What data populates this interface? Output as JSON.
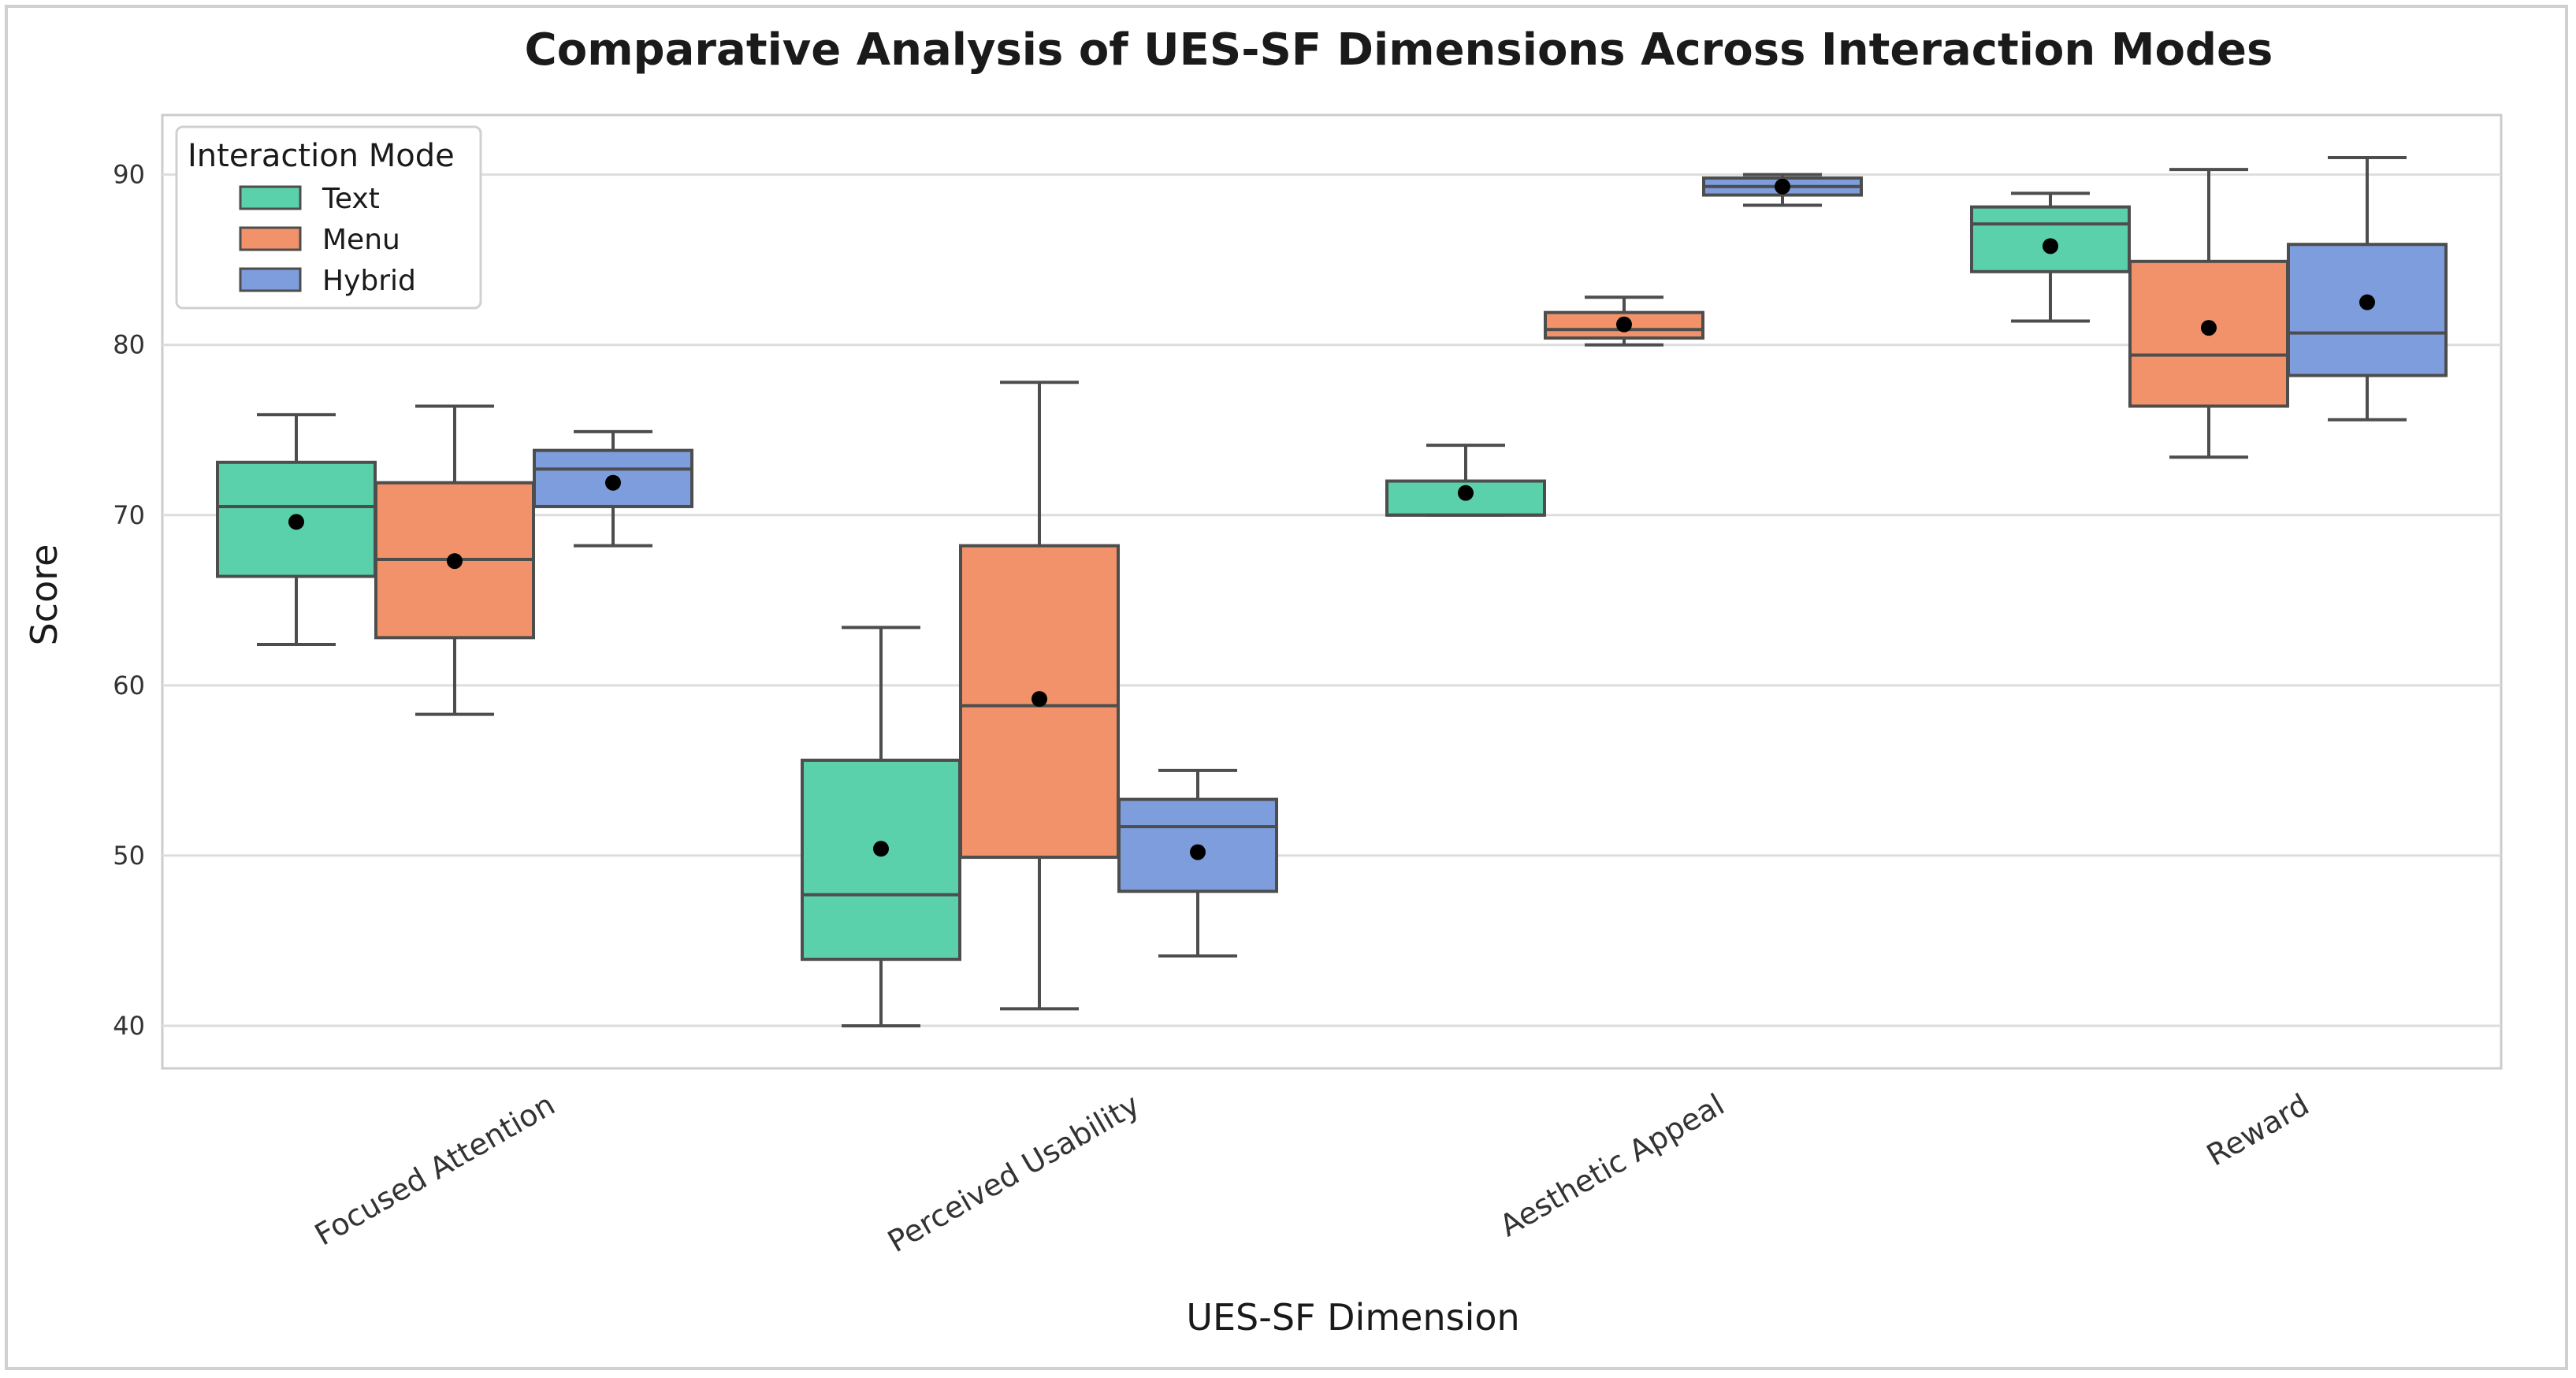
{
  "chart_data": {
    "type": "box",
    "title": "Comparative Analysis of UES-SF Dimensions Across Interaction Modes",
    "xlabel": "UES-SF Dimension",
    "ylabel": "Score",
    "ylim": [
      37.5,
      93.5
    ],
    "yticks": [
      40,
      50,
      60,
      70,
      80,
      90
    ],
    "grid": "horizontal",
    "categories": [
      "Focused Attention",
      "Perceived Usability",
      "Aesthetic Appeal",
      "Reward"
    ],
    "legend": {
      "title": "Interaction Mode",
      "placement": "top-left"
    },
    "series": [
      {
        "name": "Text",
        "color": "#5ad0ab",
        "boxes": [
          {
            "whisker_low": 62.4,
            "q1": 66.4,
            "median": 70.5,
            "q3": 73.1,
            "whisker_high": 75.9,
            "mean": 69.6
          },
          {
            "whisker_low": 40.0,
            "q1": 43.9,
            "median": 47.7,
            "q3": 55.6,
            "whisker_high": 63.4,
            "mean": 50.4
          },
          {
            "whisker_low": 70.0,
            "q1": 70.0,
            "median": 70.0,
            "q3": 72.0,
            "whisker_high": 74.1,
            "mean": 71.3
          },
          {
            "whisker_low": 81.4,
            "q1": 84.3,
            "median": 87.1,
            "q3": 88.1,
            "whisker_high": 88.9,
            "mean": 85.8
          }
        ]
      },
      {
        "name": "Menu",
        "color": "#f2926a",
        "boxes": [
          {
            "whisker_low": 58.3,
            "q1": 62.8,
            "median": 67.4,
            "q3": 71.9,
            "whisker_high": 76.4,
            "mean": 67.3
          },
          {
            "whisker_low": 41.0,
            "q1": 49.9,
            "median": 58.8,
            "q3": 68.2,
            "whisker_high": 77.8,
            "mean": 59.2
          },
          {
            "whisker_low": 80.0,
            "q1": 80.4,
            "median": 80.9,
            "q3": 81.9,
            "whisker_high": 82.8,
            "mean": 81.2
          },
          {
            "whisker_low": 73.4,
            "q1": 76.4,
            "median": 79.4,
            "q3": 84.9,
            "whisker_high": 90.3,
            "mean": 81.0
          }
        ]
      },
      {
        "name": "Hybrid",
        "color": "#7d9ddc",
        "boxes": [
          {
            "whisker_low": 68.2,
            "q1": 70.5,
            "median": 72.7,
            "q3": 73.8,
            "whisker_high": 74.9,
            "mean": 71.9
          },
          {
            "whisker_low": 44.1,
            "q1": 47.9,
            "median": 51.7,
            "q3": 53.3,
            "whisker_high": 55.0,
            "mean": 50.2
          },
          {
            "whisker_low": 88.2,
            "q1": 88.8,
            "median": 89.3,
            "q3": 89.8,
            "whisker_high": 90.0,
            "mean": 89.3
          },
          {
            "whisker_low": 75.6,
            "q1": 78.2,
            "median": 80.7,
            "q3": 85.9,
            "whisker_high": 91.0,
            "mean": 82.5
          }
        ]
      }
    ]
  }
}
